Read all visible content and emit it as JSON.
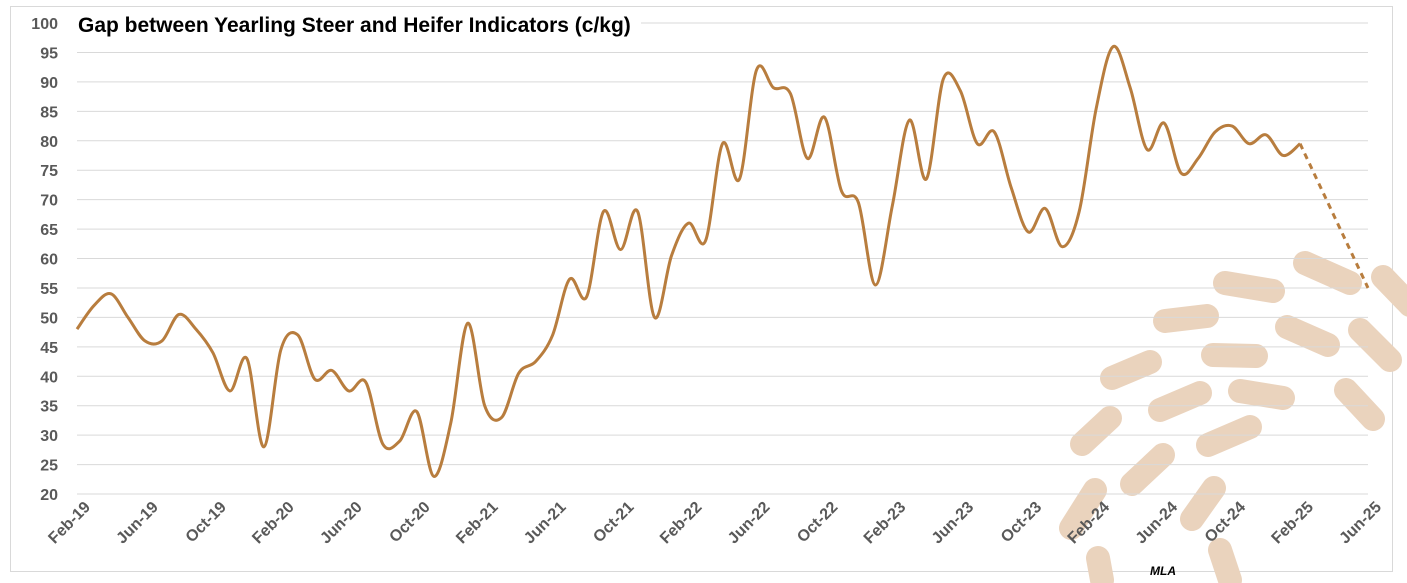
{
  "chart_data": {
    "type": "line",
    "title": "Gap between Yearling Steer and Heifer Indicators (c/kg)",
    "xlabel": "",
    "ylabel": "",
    "ylim": [
      20,
      100
    ],
    "y_ticks": [
      20,
      25,
      30,
      35,
      40,
      45,
      50,
      55,
      60,
      65,
      70,
      75,
      80,
      85,
      90,
      95,
      100
    ],
    "x_tick_labels": [
      "Feb-19",
      "Jun-19",
      "Oct-19",
      "Feb-20",
      "Jun-20",
      "Oct-20",
      "Feb-21",
      "Jun-21",
      "Oct-21",
      "Feb-22",
      "Jun-22",
      "Oct-22",
      "Feb-23",
      "Jun-23",
      "Oct-23",
      "Feb-24",
      "Jun-24",
      "Oct-24",
      "Feb-25",
      "Jun-25"
    ],
    "grid": "horizontal",
    "legend": "none",
    "line_color": "#b87d3e",
    "series": [
      {
        "style": "solid",
        "points": [
          [
            "2019-02",
            48
          ],
          [
            "2019-03",
            52
          ],
          [
            "2019-04",
            54
          ],
          [
            "2019-05",
            50
          ],
          [
            "2019-06",
            46
          ],
          [
            "2019-07",
            46
          ],
          [
            "2019-08",
            50.5
          ],
          [
            "2019-09",
            48
          ],
          [
            "2019-10",
            44
          ],
          [
            "2019-11",
            37.5
          ],
          [
            "2019-12",
            43
          ],
          [
            "2020-01",
            28
          ],
          [
            "2020-02",
            44.5
          ],
          [
            "2020-03",
            47
          ],
          [
            "2020-04",
            39.5
          ],
          [
            "2020-05",
            41
          ],
          [
            "2020-06",
            37.5
          ],
          [
            "2020-07",
            39
          ],
          [
            "2020-08",
            28.5
          ],
          [
            "2020-09",
            29
          ],
          [
            "2020-10",
            34
          ],
          [
            "2020-11",
            23
          ],
          [
            "2020-12",
            32
          ],
          [
            "2021-01",
            49
          ],
          [
            "2021-02",
            35
          ],
          [
            "2021-03",
            33
          ],
          [
            "2021-04",
            40.5
          ],
          [
            "2021-05",
            42.5
          ],
          [
            "2021-06",
            47
          ],
          [
            "2021-07",
            56.5
          ],
          [
            "2021-08",
            53.5
          ],
          [
            "2021-09",
            68
          ],
          [
            "2021-10",
            61.5
          ],
          [
            "2021-11",
            68
          ],
          [
            "2021-12",
            50
          ],
          [
            "2022-01",
            60.5
          ],
          [
            "2022-02",
            66
          ],
          [
            "2022-03",
            63
          ],
          [
            "2022-04",
            79.5
          ],
          [
            "2022-05",
            73.5
          ],
          [
            "2022-06",
            92
          ],
          [
            "2022-07",
            89
          ],
          [
            "2022-08",
            88
          ],
          [
            "2022-09",
            77
          ],
          [
            "2022-10",
            84
          ],
          [
            "2022-11",
            71.5
          ],
          [
            "2022-12",
            69.5
          ],
          [
            "2023-01",
            55.5
          ],
          [
            "2023-02",
            69
          ],
          [
            "2023-03",
            83.5
          ],
          [
            "2023-04",
            73.5
          ],
          [
            "2023-05",
            90.5
          ],
          [
            "2023-06",
            88.5
          ],
          [
            "2023-07",
            79.5
          ],
          [
            "2023-08",
            81.5
          ],
          [
            "2023-09",
            72
          ],
          [
            "2023-10",
            64.5
          ],
          [
            "2023-11",
            68.5
          ],
          [
            "2023-12",
            62
          ],
          [
            "2024-01",
            68
          ],
          [
            "2024-02",
            85.5
          ],
          [
            "2024-03",
            96
          ],
          [
            "2024-04",
            89
          ],
          [
            "2024-05",
            78.5
          ],
          [
            "2024-06",
            83
          ],
          [
            "2024-07",
            74.5
          ],
          [
            "2024-08",
            77
          ],
          [
            "2024-09",
            81.5
          ],
          [
            "2024-10",
            82.5
          ],
          [
            "2024-11",
            79.5
          ],
          [
            "2024-12",
            81
          ],
          [
            "2025-01",
            77.5
          ],
          [
            "2025-02",
            79.5
          ]
        ]
      },
      {
        "style": "dashed",
        "points": [
          [
            "2025-02",
            79.5
          ],
          [
            "2025-06",
            55
          ]
        ]
      }
    ]
  },
  "source_label": "MLA"
}
